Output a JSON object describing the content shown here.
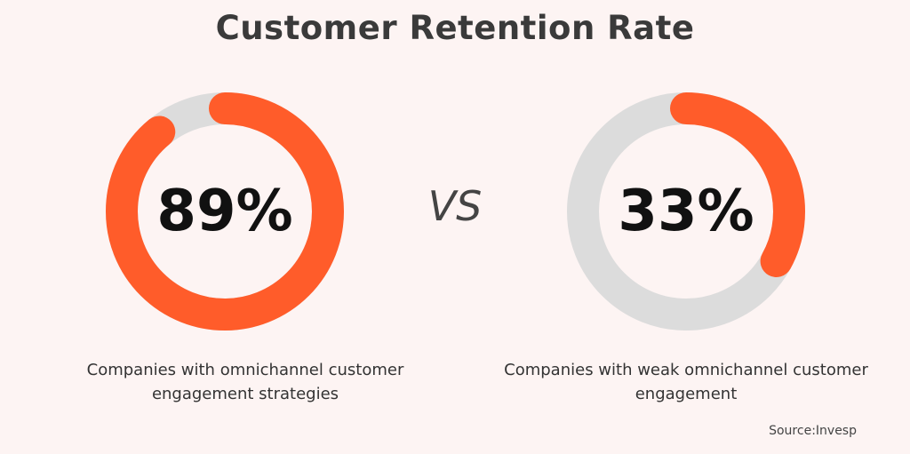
{
  "chart_data": {
    "type": "pie",
    "title": "Customer Retention Rate",
    "separator": "VS",
    "source": "Source:Invesp",
    "charts": [
      {
        "value": 89,
        "label": "89%",
        "caption": "Companies with omnichannel customer engagement strategies"
      },
      {
        "value": 33,
        "label": "33%",
        "caption": "Companies with weak omnichannel customer engagement"
      }
    ]
  },
  "colors": {
    "accent": "#ff5c2a",
    "track": "#dcdcdc",
    "background": "#fdf4f3"
  }
}
